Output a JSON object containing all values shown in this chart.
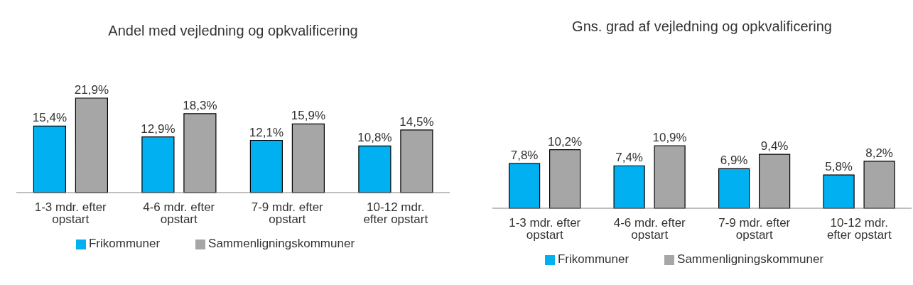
{
  "chart_data": [
    {
      "type": "bar",
      "title": "Andel med vejledning og opkvalificering",
      "categories": [
        "1-3 mdr. efter opstart",
        "4-6 mdr. efter opstart",
        "7-9 mdr. efter opstart",
        "10-12 mdr. efter opstart"
      ],
      "series": [
        {
          "name": "Frikommuner",
          "color": "#00b0f0",
          "values": [
            15.4,
            12.9,
            12.1,
            10.8
          ],
          "value_labels": [
            "15,4%",
            "12,9%",
            "12,1%",
            "10,8%"
          ]
        },
        {
          "name": "Sammenligningskommuner",
          "color": "#a6a6a6",
          "values": [
            21.9,
            18.3,
            15.9,
            14.5
          ],
          "value_labels": [
            "21,9%",
            "18,3%",
            "15,9%",
            "14,5%"
          ]
        }
      ],
      "legend": "bottom"
    },
    {
      "type": "bar",
      "title": "Gns. grad af vejledning og opkvalificering",
      "categories": [
        "1-3 mdr. efter opstart",
        "4-6 mdr. efter opstart",
        "7-9 mdr. efter opstart",
        "10-12 mdr. efter opstart"
      ],
      "series": [
        {
          "name": "Frikommuner",
          "color": "#00b0f0",
          "values": [
            7.8,
            7.4,
            6.9,
            5.8
          ],
          "value_labels": [
            "7,8%",
            "7,4%",
            "6,9%",
            "5,8%"
          ]
        },
        {
          "name": "Sammenligningskommuner",
          "color": "#a6a6a6",
          "values": [
            10.2,
            10.9,
            9.4,
            8.2
          ],
          "value_labels": [
            "10,2%",
            "10,9%",
            "9,4%",
            "8,2%"
          ]
        }
      ],
      "legend": "bottom"
    }
  ]
}
